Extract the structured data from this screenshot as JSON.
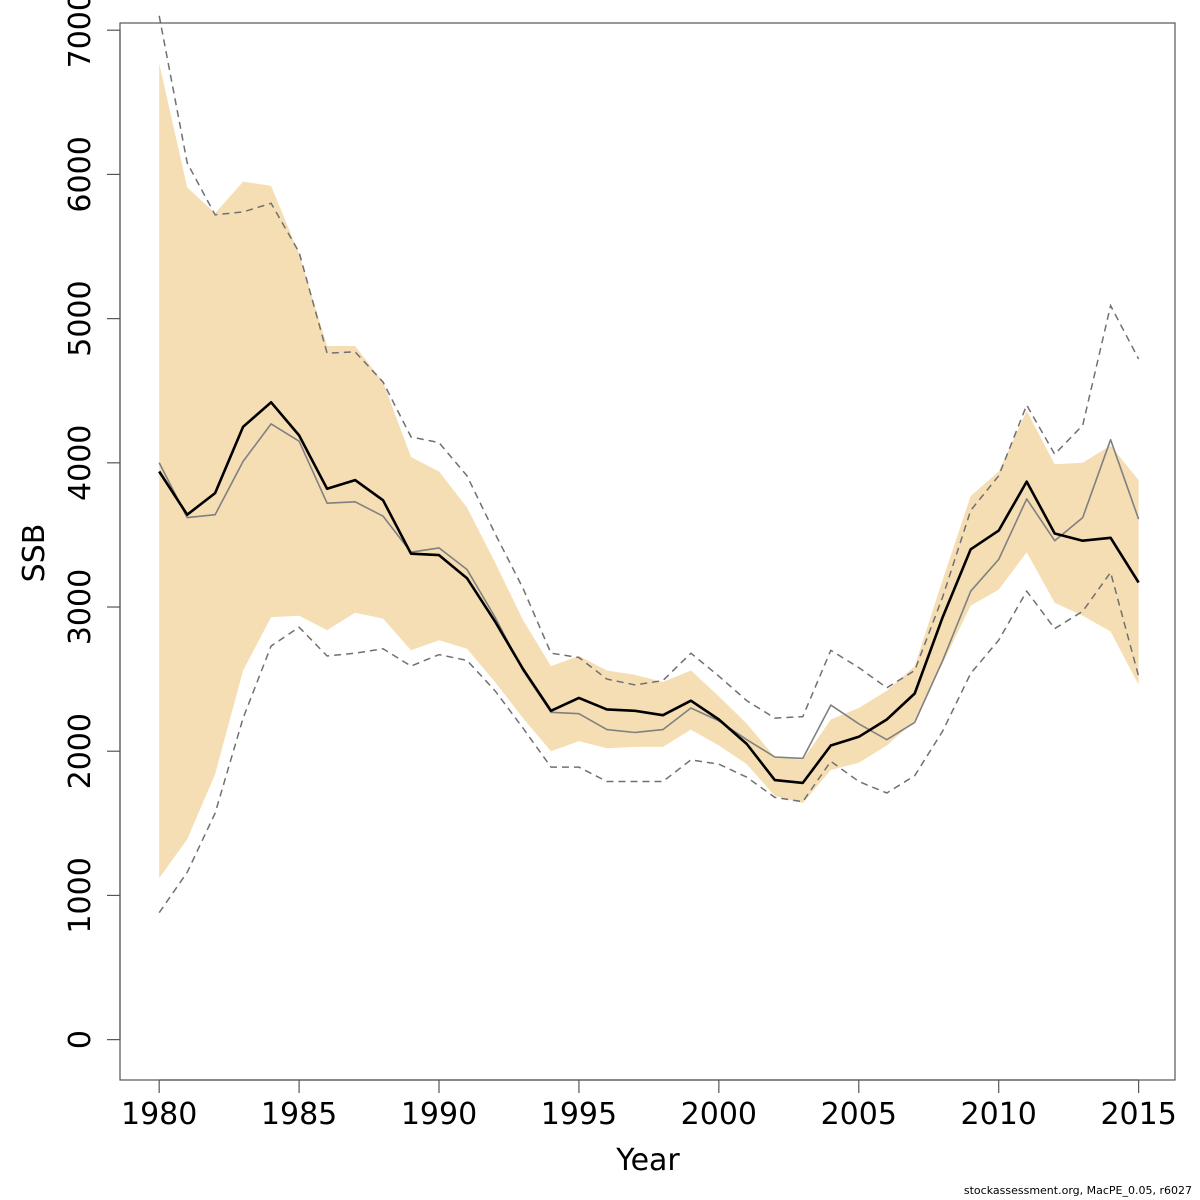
{
  "chart_data": {
    "type": "line",
    "xlabel": "Year",
    "ylabel": "SSB",
    "xlim": [
      1978.6,
      2016.3
    ],
    "ylim": [
      -280,
      7050
    ],
    "x_ticks": [
      1980,
      1985,
      1990,
      1995,
      2000,
      2005,
      2010,
      2015
    ],
    "y_ticks": [
      0,
      1000,
      2000,
      3000,
      4000,
      5000,
      6000,
      7000
    ],
    "x": [
      1980,
      1981,
      1982,
      1983,
      1984,
      1985,
      1986,
      1987,
      1988,
      1989,
      1990,
      1991,
      1992,
      1993,
      1994,
      1995,
      1996,
      1997,
      1998,
      1999,
      2000,
      2001,
      2002,
      2003,
      2004,
      2005,
      2006,
      2007,
      2008,
      2009,
      2010,
      2011,
      2012,
      2013,
      2014,
      2015
    ],
    "band": {
      "color": "#f5deb3",
      "upper": [
        6770,
        5910,
        5730,
        5950,
        5920,
        5450,
        4810,
        4810,
        4560,
        4040,
        3940,
        3690,
        3310,
        2910,
        2590,
        2660,
        2560,
        2530,
        2480,
        2560,
        2380,
        2190,
        1960,
        1940,
        2220,
        2300,
        2420,
        2590,
        3190,
        3770,
        3940,
        4360,
        3990,
        4000,
        4120,
        3880
      ],
      "lower": [
        1120,
        1390,
        1840,
        2560,
        2930,
        2940,
        2840,
        2960,
        2920,
        2700,
        2770,
        2710,
        2480,
        2230,
        2000,
        2070,
        2020,
        2030,
        2030,
        2150,
        2040,
        1910,
        1690,
        1640,
        1870,
        1920,
        2040,
        2210,
        2610,
        3010,
        3120,
        3380,
        3030,
        2940,
        2830,
        2460
      ]
    },
    "series": [
      {
        "color": "#000000",
        "values": [
          3940,
          3640,
          3790,
          4250,
          4420,
          4190,
          3820,
          3880,
          3740,
          3370,
          3360,
          3200,
          2900,
          2570,
          2280,
          2370,
          2290,
          2280,
          2250,
          2350,
          2220,
          2050,
          1800,
          1780,
          2040,
          2100,
          2220,
          2400,
          2930,
          3400,
          3530,
          3870,
          3510,
          3460,
          3480,
          3170
        ]
      },
      {
        "color": "#808080",
        "values": [
          4000,
          3620,
          3640,
          4010,
          4270,
          4150,
          3720,
          3730,
          3630,
          3380,
          3410,
          3260,
          2930,
          2560,
          2270,
          2260,
          2150,
          2130,
          2150,
          2300,
          2210,
          2080,
          1960,
          1950,
          2320,
          2190,
          2080,
          2200,
          2630,
          3110,
          3330,
          3750,
          3460,
          3620,
          4160,
          3610
        ]
      }
    ],
    "dashed_bounds": {
      "color": "#707070",
      "upper": [
        7100,
        6080,
        5720,
        5740,
        5800,
        5460,
        4760,
        4770,
        4560,
        4180,
        4140,
        3910,
        3510,
        3130,
        2680,
        2650,
        2500,
        2460,
        2490,
        2680,
        2520,
        2350,
        2230,
        2240,
        2700,
        2580,
        2440,
        2560,
        3070,
        3670,
        3910,
        4400,
        4060,
        4260,
        5090,
        4720
      ],
      "lower": [
        880,
        1160,
        1570,
        2230,
        2730,
        2860,
        2660,
        2680,
        2710,
        2590,
        2670,
        2630,
        2420,
        2160,
        1890,
        1890,
        1790,
        1790,
        1790,
        1940,
        1910,
        1820,
        1680,
        1650,
        1930,
        1790,
        1710,
        1830,
        2140,
        2540,
        2770,
        3110,
        2850,
        2970,
        3240,
        2520
      ]
    }
  },
  "footer": "stockassessment.org, MacPE_0.05, r6027"
}
